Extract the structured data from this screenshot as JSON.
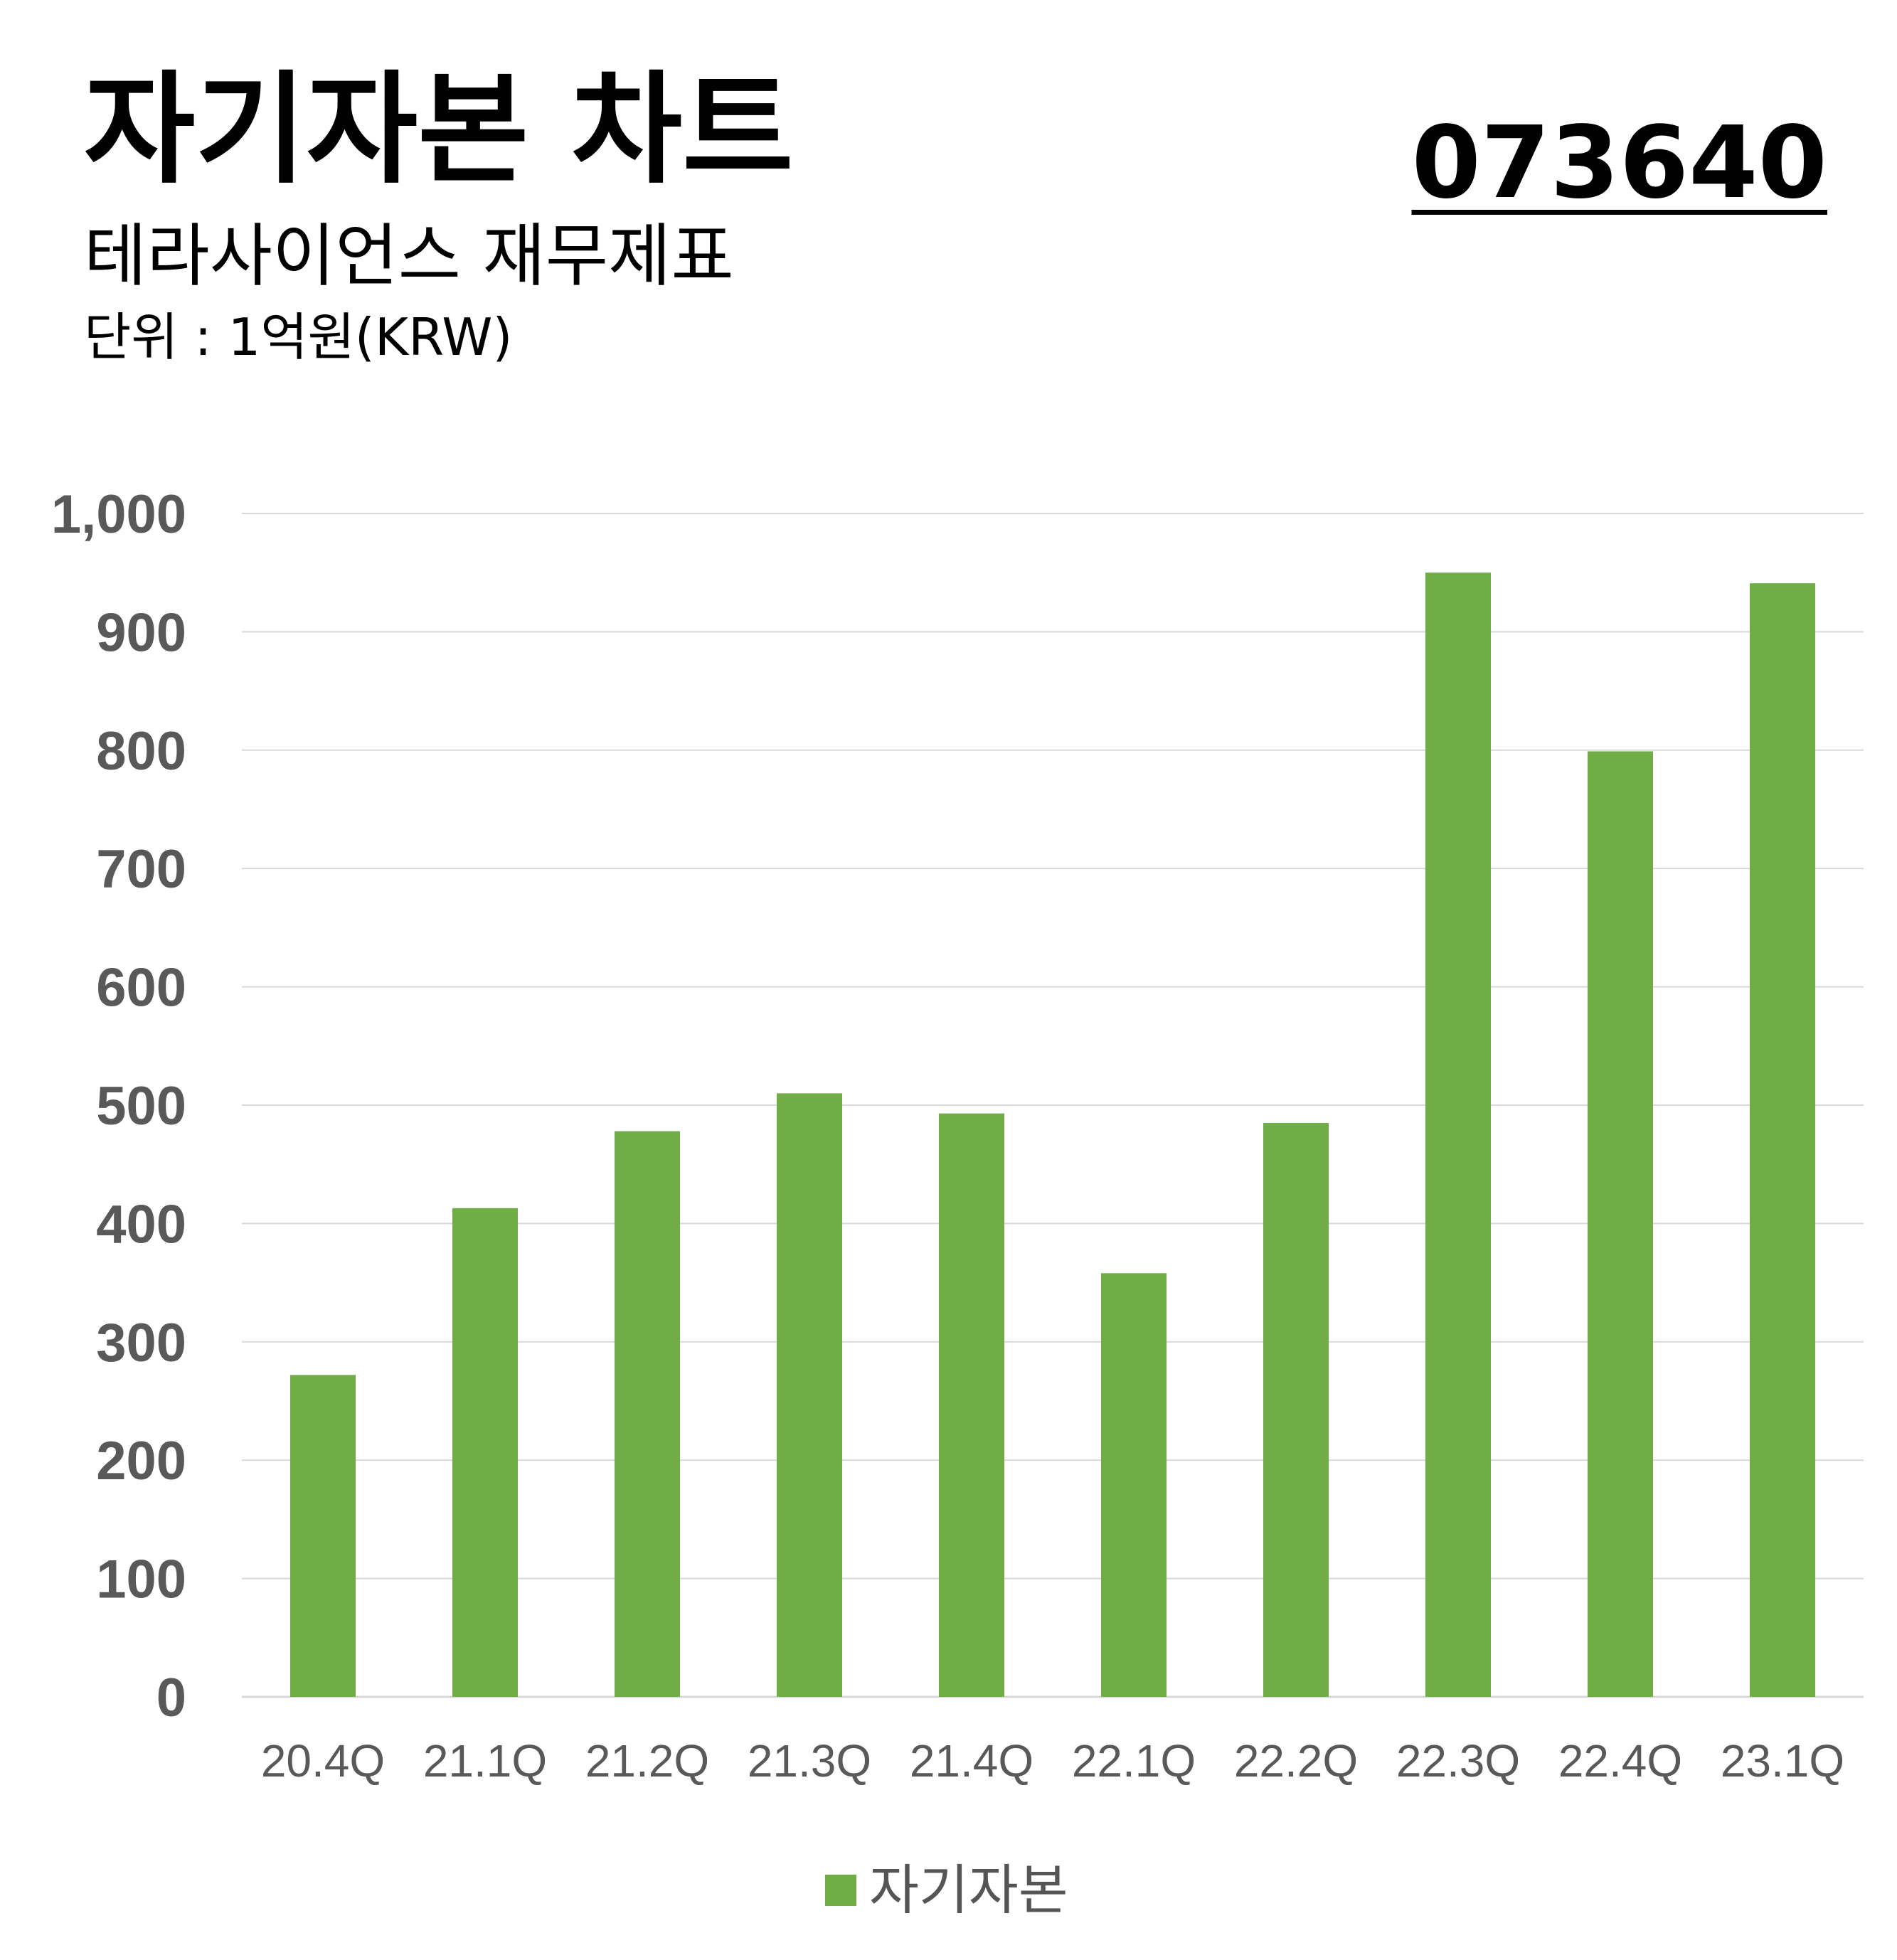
{
  "header": {
    "title": "자기자본 차트",
    "subtitle": "테라사이언스 재무제표",
    "unit": "단위 : 1억원(KRW)",
    "ticker": "073640"
  },
  "chart_data": {
    "type": "bar",
    "title": "자기자본 차트",
    "categories": [
      "20.4Q",
      "21.1Q",
      "21.2Q",
      "21.3Q",
      "21.4Q",
      "22.1Q",
      "22.2Q",
      "22.3Q",
      "22.4Q",
      "23.1Q"
    ],
    "series": [
      {
        "name": "자기자본",
        "values": [
          272,
          413,
          478,
          510,
          493,
          358,
          485,
          950,
          799,
          941
        ],
        "color": "#70AD47"
      }
    ],
    "yticks": [
      "0",
      "100",
      "200",
      "300",
      "400",
      "500",
      "600",
      "700",
      "800",
      "900",
      "1,000"
    ],
    "ylim": [
      0,
      1000
    ],
    "xlabel": "",
    "ylabel": "",
    "grid": true,
    "legend_position": "bottom"
  },
  "colors": {
    "bar": "#70AD47",
    "grid": "#d9d9d9",
    "axis_text": "#595959"
  }
}
